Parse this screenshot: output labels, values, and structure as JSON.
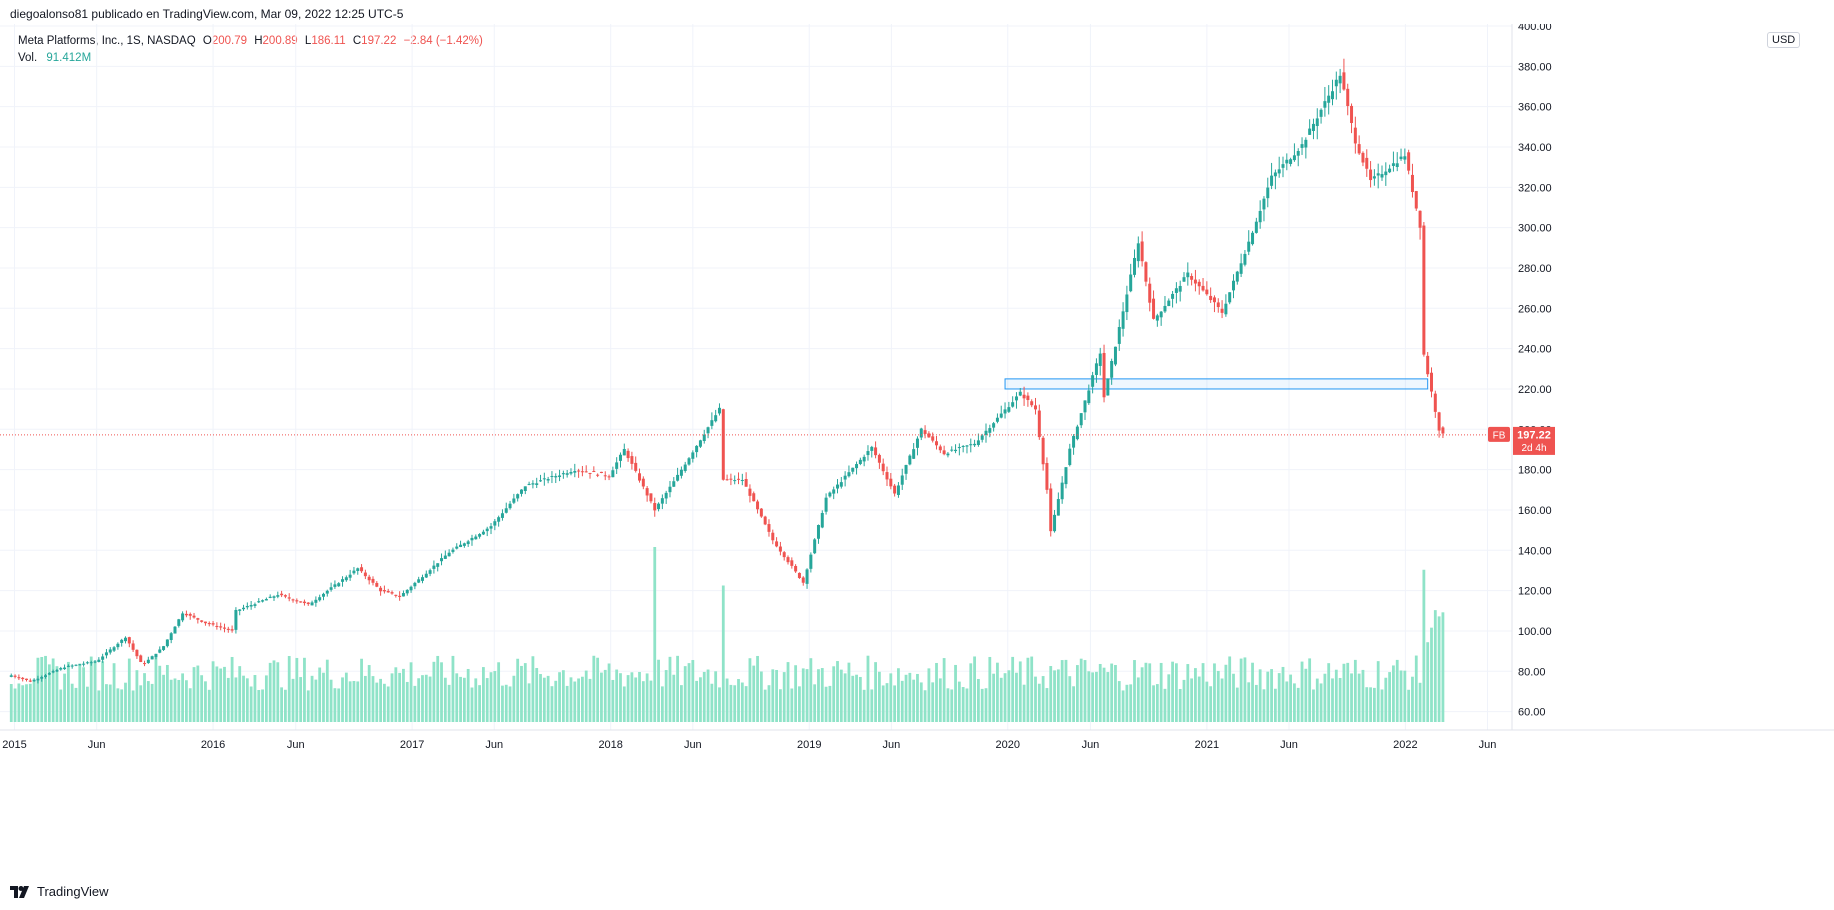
{
  "header": {
    "publisher": "diegoalonso81 publicado en TradingView.com, Mar 09, 2022 12:25 UTC-5",
    "symbol_desc": "Meta Platforms, Inc., 1S, NASDAQ",
    "o_label": "O",
    "o_value": "200.79",
    "h_label": "H",
    "h_value": "200.89",
    "l_label": "L",
    "l_value": "186.11",
    "c_label": "C",
    "c_value": "197.22",
    "change": "−2.84 (−1.42%)",
    "vol_label": "Vol.",
    "vol_value": "91.412M"
  },
  "currency": "USD",
  "footer": {
    "brand": "TradingView"
  },
  "colors": {
    "up": "#26a69a",
    "down": "#ef5350",
    "vol_bar": "#8fe3c8",
    "zone": "#2196f3",
    "price_line": "#ef5350"
  },
  "chart_data": {
    "type": "candlestick",
    "symbol": "FB",
    "interval": "1S",
    "last_price": 197.22,
    "last_price_label": "197.22",
    "countdown_label": "2d 4h",
    "ylim": [
      52,
      400
    ],
    "y_ticks": [
      60,
      80,
      100,
      120,
      140,
      160,
      180,
      200,
      220,
      240,
      260,
      280,
      300,
      320,
      340,
      360,
      380,
      400
    ],
    "y_tick_labels": [
      "60.00",
      "80.00",
      "100.00",
      "120.00",
      "140.00",
      "160.00",
      "180.00",
      "200.00",
      "220.00",
      "240.00",
      "260.00",
      "280.00",
      "300.00",
      "320.00",
      "340.00",
      "360.00",
      "380.00",
      "400.00"
    ],
    "x_ticks": [
      {
        "label": "2015",
        "date": "2015-01-01"
      },
      {
        "label": "Jun",
        "date": "2015-06-01"
      },
      {
        "label": "2016",
        "date": "2016-01-01"
      },
      {
        "label": "Jun",
        "date": "2016-06-01"
      },
      {
        "label": "2017",
        "date": "2017-01-01"
      },
      {
        "label": "Jun",
        "date": "2017-06-01"
      },
      {
        "label": "2018",
        "date": "2018-01-01"
      },
      {
        "label": "Jun",
        "date": "2018-06-01"
      },
      {
        "label": "2019",
        "date": "2019-01-01"
      },
      {
        "label": "Jun",
        "date": "2019-06-01"
      },
      {
        "label": "2020",
        "date": "2020-01-01"
      },
      {
        "label": "Jun",
        "date": "2020-06-01"
      },
      {
        "label": "2021",
        "date": "2021-01-01"
      },
      {
        "label": "Jun",
        "date": "2021-06-01"
      },
      {
        "label": "2022",
        "date": "2022-01-01"
      },
      {
        "label": "Jun",
        "date": "2022-06-01"
      }
    ],
    "zone": {
      "date_from": "2019-12-27",
      "date_to": "2022-02-11",
      "price_low": 220,
      "price_high": 225
    },
    "keypoints": [
      {
        "date": "2014-12-26",
        "close": 78
      },
      {
        "date": "2015-01-30",
        "close": 75
      },
      {
        "date": "2015-04-01",
        "close": 82
      },
      {
        "date": "2015-06-01",
        "close": 85
      },
      {
        "date": "2015-07-24",
        "close": 97
      },
      {
        "date": "2015-08-24",
        "close": 83
      },
      {
        "date": "2015-10-01",
        "close": 92
      },
      {
        "date": "2015-11-06",
        "close": 109
      },
      {
        "date": "2015-12-18",
        "close": 104
      },
      {
        "date": "2016-02-05",
        "close": 100
      },
      {
        "date": "2016-02-12",
        "close": 110
      },
      {
        "date": "2016-04-29",
        "close": 118
      },
      {
        "date": "2016-06-24",
        "close": 113
      },
      {
        "date": "2016-09-23",
        "close": 131
      },
      {
        "date": "2016-11-04",
        "close": 120
      },
      {
        "date": "2016-12-09",
        "close": 117
      },
      {
        "date": "2017-03-10",
        "close": 139
      },
      {
        "date": "2017-05-26",
        "close": 152
      },
      {
        "date": "2017-07-28",
        "close": 172
      },
      {
        "date": "2017-10-27",
        "close": 180
      },
      {
        "date": "2017-12-29",
        "close": 177
      },
      {
        "date": "2018-01-26",
        "close": 190
      },
      {
        "date": "2018-03-23",
        "close": 160
      },
      {
        "date": "2018-04-27",
        "close": 174
      },
      {
        "date": "2018-07-20",
        "close": 210
      },
      {
        "date": "2018-07-27",
        "close": 175
      },
      {
        "date": "2018-08-31",
        "close": 175
      },
      {
        "date": "2018-10-26",
        "close": 145
      },
      {
        "date": "2018-12-21",
        "close": 124
      },
      {
        "date": "2019-01-04",
        "close": 138
      },
      {
        "date": "2019-02-01",
        "close": 166
      },
      {
        "date": "2019-04-26",
        "close": 191
      },
      {
        "date": "2019-06-07",
        "close": 168
      },
      {
        "date": "2019-07-26",
        "close": 200
      },
      {
        "date": "2019-09-06",
        "close": 188
      },
      {
        "date": "2019-11-01",
        "close": 193
      },
      {
        "date": "2020-01-24",
        "close": 218
      },
      {
        "date": "2020-02-21",
        "close": 210
      },
      {
        "date": "2020-03-13",
        "close": 170
      },
      {
        "date": "2020-03-20",
        "close": 149
      },
      {
        "date": "2020-04-24",
        "close": 190
      },
      {
        "date": "2020-06-19",
        "close": 238
      },
      {
        "date": "2020-06-26",
        "close": 216
      },
      {
        "date": "2020-08-28",
        "close": 293
      },
      {
        "date": "2020-09-25",
        "close": 254
      },
      {
        "date": "2020-11-27",
        "close": 277
      },
      {
        "date": "2021-01-29",
        "close": 258
      },
      {
        "date": "2021-03-19",
        "close": 293
      },
      {
        "date": "2021-04-30",
        "close": 325
      },
      {
        "date": "2021-06-25",
        "close": 341
      },
      {
        "date": "2021-09-03",
        "close": 376
      },
      {
        "date": "2021-10-01",
        "close": 343
      },
      {
        "date": "2021-10-29",
        "close": 323
      },
      {
        "date": "2021-12-31",
        "close": 336
      },
      {
        "date": "2022-01-28",
        "close": 301
      },
      {
        "date": "2022-02-04",
        "close": 237
      },
      {
        "date": "2022-03-04",
        "close": 200
      },
      {
        "date": "2022-03-11",
        "close": 197.22
      }
    ],
    "volume_spikes": [
      {
        "date": "2018-03-23",
        "relative": 1.0
      },
      {
        "date": "2018-07-27",
        "relative": 0.78
      },
      {
        "date": "2022-02-04",
        "relative": 0.87
      }
    ],
    "volume_ylim_note": "volume pane shares bottom area; no separate axis"
  }
}
